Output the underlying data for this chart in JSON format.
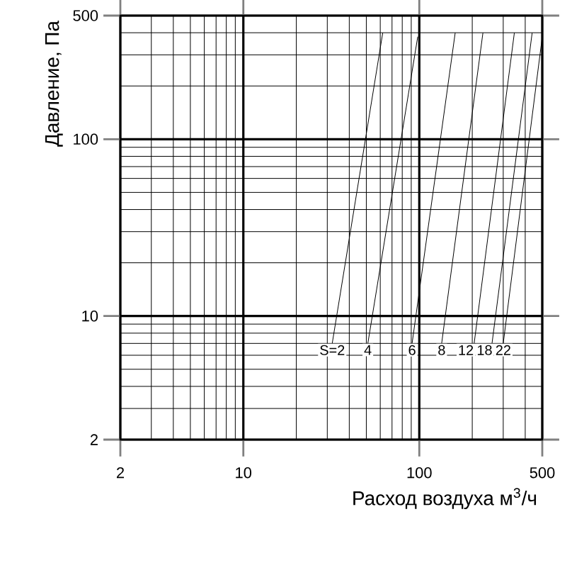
{
  "chart_data": {
    "type": "line",
    "xlabel": "Расход воздуха м$^{3}$/ч",
    "ylabel": "Давление, Па",
    "log": "xy",
    "grid": true,
    "legend": false,
    "marker": "none",
    "line_style": "solid",
    "xlim": [
      2,
      500
    ],
    "ylim": [
      2,
      500
    ],
    "xticks": [
      2,
      10,
      100,
      500
    ],
    "yticks": [
      2,
      10,
      100,
      500
    ],
    "series": [
      {
        "name": "S=2",
        "color": "#000000",
        "x": [
          32,
          62
        ],
        "values": [
          7,
          400
        ]
      },
      {
        "name": "4",
        "color": "#000000",
        "x": [
          51,
          98
        ],
        "values": [
          7,
          380
        ]
      },
      {
        "name": "6",
        "color": "#000000",
        "x": [
          91,
          160
        ],
        "values": [
          7,
          400
        ]
      },
      {
        "name": "8",
        "color": "#000000",
        "x": [
          134,
          230
        ],
        "values": [
          7,
          400
        ]
      },
      {
        "name": "12",
        "color": "#000000",
        "x": [
          205,
          347
        ],
        "values": [
          7,
          400
        ]
      },
      {
        "name": "18",
        "color": "#000000",
        "x": [
          259,
          438
        ],
        "values": [
          7,
          400
        ]
      },
      {
        "name": "22",
        "color": "#000000",
        "x": [
          300,
          500
        ],
        "values": [
          7,
          380
        ]
      }
    ]
  }
}
